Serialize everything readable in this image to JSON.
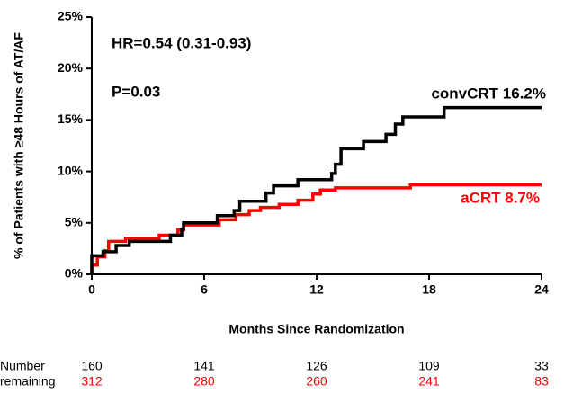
{
  "chart_data": {
    "type": "line",
    "ylabel": "% of Patients with ≥48 Hours of AT/AF",
    "xlabel": "Months Since Randomization",
    "annotations": [
      "HR=0.54 (0.31-0.93)",
      "P=0.03"
    ],
    "xlim": [
      0,
      24
    ],
    "xticks": [
      0,
      6,
      12,
      18,
      24
    ],
    "ylim": [
      0,
      25
    ],
    "yticks": [
      {
        "value": 0,
        "label": "0%"
      },
      {
        "value": 5,
        "label": "5%"
      },
      {
        "value": 10,
        "label": "10%"
      },
      {
        "value": 15,
        "label": "15%"
      },
      {
        "value": 20,
        "label": "20%"
      },
      {
        "value": 25,
        "label": "25%"
      }
    ],
    "series": [
      {
        "name": "convCRT 16.2%",
        "color": "#000000",
        "x": [
          0,
          0,
          0.6,
          0.6,
          1.3,
          1.3,
          2.0,
          2.0,
          4.2,
          4.2,
          4.8,
          4.8,
          4.9,
          4.9,
          6.7,
          6.7,
          7.6,
          7.6,
          7.9,
          7.9,
          9.3,
          9.3,
          9.7,
          9.7,
          11.0,
          11.0,
          12.8,
          12.8,
          13.0,
          13.0,
          13.3,
          13.3,
          14.5,
          14.5,
          15.7,
          15.7,
          16.2,
          16.2,
          16.6,
          16.6,
          18.8,
          18.8,
          24
        ],
        "values": [
          0,
          1.8,
          1.8,
          2.2,
          2.2,
          2.8,
          2.8,
          3.2,
          3.2,
          3.8,
          3.8,
          4.4,
          4.4,
          5.0,
          5.0,
          5.7,
          5.7,
          6.2,
          6.2,
          7.1,
          7.1,
          7.9,
          7.9,
          8.6,
          8.6,
          9.2,
          9.2,
          9.8,
          9.8,
          10.7,
          10.7,
          12.2,
          12.2,
          12.9,
          12.9,
          13.6,
          13.6,
          14.6,
          14.6,
          15.3,
          15.3,
          16.2,
          16.2
        ]
      },
      {
        "name": "aCRT 8.7%",
        "color": "#ff0000",
        "x": [
          0,
          0,
          0.3,
          0.3,
          0.7,
          0.7,
          0.9,
          0.9,
          1.8,
          1.8,
          3.6,
          3.6,
          4.6,
          4.6,
          4.9,
          4.9,
          6.8,
          6.8,
          7.7,
          7.7,
          8.4,
          8.4,
          9.0,
          9.0,
          10.0,
          10.0,
          11.0,
          11.0,
          11.8,
          11.8,
          12.2,
          12.2,
          13.0,
          13.0,
          17.0,
          17.0,
          24
        ],
        "values": [
          0,
          0.9,
          0.9,
          1.7,
          1.7,
          2.3,
          2.3,
          3.2,
          3.2,
          3.5,
          3.5,
          3.8,
          3.8,
          4.3,
          4.3,
          4.8,
          4.8,
          5.3,
          5.3,
          5.8,
          5.8,
          6.2,
          6.2,
          6.5,
          6.5,
          6.8,
          6.8,
          7.2,
          7.2,
          7.8,
          7.8,
          8.2,
          8.2,
          8.4,
          8.4,
          8.7,
          8.7
        ]
      }
    ],
    "risk_table": {
      "labels": [
        "Number",
        "remaining"
      ],
      "rows": [
        {
          "color": "#000000",
          "values": [
            "160",
            "141",
            "126",
            "109",
            "33"
          ]
        },
        {
          "color": "#ff0000",
          "values": [
            "312",
            "280",
            "260",
            "241",
            "83"
          ]
        }
      ]
    }
  }
}
